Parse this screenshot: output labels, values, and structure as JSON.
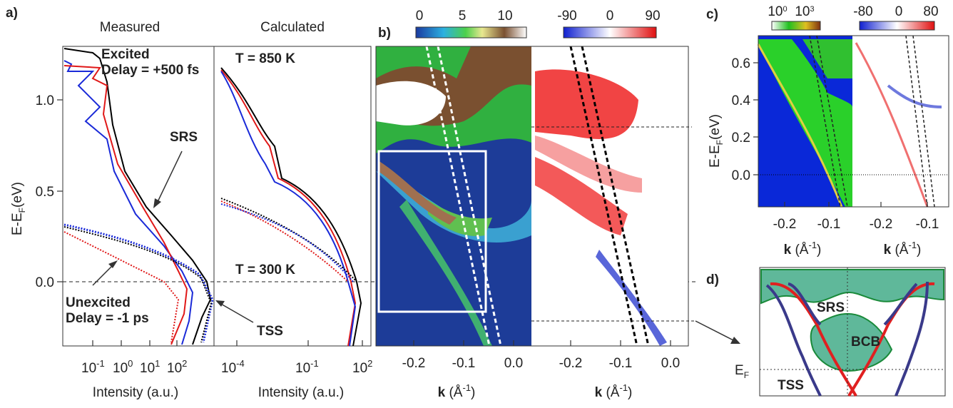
{
  "panel_a": {
    "label": "a)",
    "measured_title": "Measured",
    "calculated_title": "Calculated",
    "y_axis_label": {
      "main": "E-E",
      "sub": "F",
      "unit": "(eV)"
    },
    "y_ticks": [
      "1.0",
      "0.5",
      "0.0"
    ],
    "measured_x_ticks": [
      {
        "base": "10",
        "exp": "-1"
      },
      {
        "base": "10",
        "exp": "0"
      },
      {
        "base": "10",
        "exp": "1"
      },
      {
        "base": "10",
        "exp": "2"
      }
    ],
    "calculated_x_ticks": [
      {
        "base": "10",
        "exp": "-4"
      },
      {
        "base": "10",
        "exp": "-1"
      },
      {
        "base": "10",
        "exp": "2"
      }
    ],
    "x_axis_label": "Intensity (a.u.)",
    "excited": "Excited",
    "excited_delay": "Delay = +500 fs",
    "unexcited": "Unexcited",
    "unexcited_delay": "Delay = -1 ps",
    "srs": "SRS",
    "tss": "TSS",
    "temp_high": "T   = 850 K",
    "temp_low": "T   = 300 K"
  },
  "panel_b": {
    "label": "b)",
    "colorbar_left_ticks": [
      "0",
      "5",
      "10"
    ],
    "colorbar_right_ticks": [
      "-90",
      "0",
      "90"
    ],
    "x_ticks": [
      "-0.2",
      "-0.1",
      "0.0"
    ],
    "x_axis_label": {
      "main": "k",
      "unit": "(Å",
      "exp": "-1",
      "close": ")"
    }
  },
  "panel_c": {
    "label": "c)",
    "colorbar_left_ticks": [
      {
        "base": "10",
        "exp": "0"
      },
      {
        "base": "10",
        "exp": "3"
      }
    ],
    "colorbar_right_ticks": [
      "-80",
      "0",
      "80"
    ],
    "y_ticks": [
      "0.6",
      "0.4",
      "0.2",
      "0.0"
    ],
    "y_axis_label": {
      "main": "E-E",
      "sub": "F",
      "unit": "(eV)"
    },
    "x_ticks": [
      "-0.2",
      "-0.1"
    ],
    "x_axis_label": {
      "main": "k",
      "unit": "(Å",
      "exp": "-1",
      "close": ")"
    }
  },
  "panel_d": {
    "label": "d)",
    "srs": "SRS",
    "bcb": "BCB",
    "ef": {
      "main": "E",
      "sub": "F"
    },
    "tss": "TSS"
  }
}
